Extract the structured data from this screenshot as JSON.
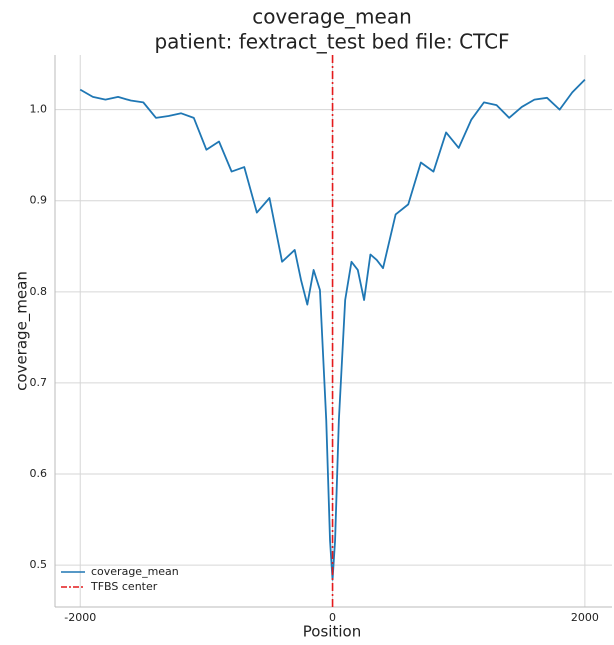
{
  "chart_data": {
    "type": "line",
    "title": "coverage_mean",
    "subtitle": "patient: fextract_test bed file: CTCF",
    "xlabel": "Position",
    "ylabel": "coverage_mean",
    "x": [
      -2000,
      -1900,
      -1800,
      -1700,
      -1600,
      -1500,
      -1400,
      -1300,
      -1200,
      -1100,
      -1000,
      -900,
      -800,
      -700,
      -600,
      -500,
      -400,
      -300,
      -250,
      -200,
      -150,
      -100,
      -50,
      -20,
      0,
      20,
      50,
      100,
      150,
      200,
      250,
      300,
      350,
      400,
      500,
      600,
      700,
      800,
      900,
      1000,
      1100,
      1200,
      1300,
      1400,
      1500,
      1600,
      1700,
      1800,
      1900,
      2000
    ],
    "series": [
      {
        "name": "coverage_mean",
        "color": "#1f77b4",
        "values": [
          1.022,
          1.014,
          1.011,
          1.014,
          1.01,
          1.008,
          0.991,
          0.993,
          0.996,
          0.991,
          0.956,
          0.965,
          0.932,
          0.937,
          0.887,
          0.903,
          0.833,
          0.846,
          0.813,
          0.786,
          0.824,
          0.802,
          0.659,
          0.527,
          0.484,
          0.527,
          0.659,
          0.791,
          0.833,
          0.824,
          0.791,
          0.841,
          0.835,
          0.826,
          0.885,
          0.896,
          0.942,
          0.932,
          0.975,
          0.958,
          0.989,
          1.008,
          1.005,
          0.991,
          1.003,
          1.011,
          1.013,
          1.0,
          1.019,
          1.033
        ]
      }
    ],
    "vlines": [
      {
        "name": "TFBS center",
        "x": 0,
        "color": "#e41a1c"
      }
    ],
    "xlim": [
      -2200,
      2215
    ],
    "ylim": [
      0.454,
      1.06
    ],
    "xticks": [
      -2000,
      0,
      2000
    ],
    "yticks": [
      0.5,
      0.6,
      0.7,
      0.8,
      0.9,
      {
        "value": 1,
        "label": "1.0"
      }
    ],
    "grid": true,
    "legend": "lower left"
  }
}
